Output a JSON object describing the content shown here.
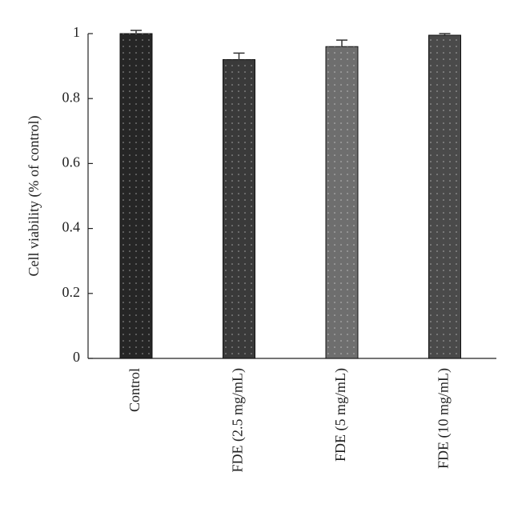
{
  "chart_data": {
    "type": "bar",
    "y_label": "Cell viability (% of control)",
    "categories": [
      "Control",
      "FDE (2.5 mg/mL)",
      "FDE (5 mg/mL)",
      "FDE (10 mg/mL)"
    ],
    "values": [
      1.0,
      0.92,
      0.96,
      0.995
    ],
    "errors": [
      0.01,
      0.02,
      0.02,
      0.005
    ],
    "colors": [
      "#262626",
      "#3a3a3a",
      "#6e6e6e",
      "#4a4a4a"
    ],
    "ylim": [
      0,
      1
    ],
    "yticks": [
      0,
      0.2,
      0.4,
      0.6,
      0.8,
      1
    ],
    "grid": false
  }
}
